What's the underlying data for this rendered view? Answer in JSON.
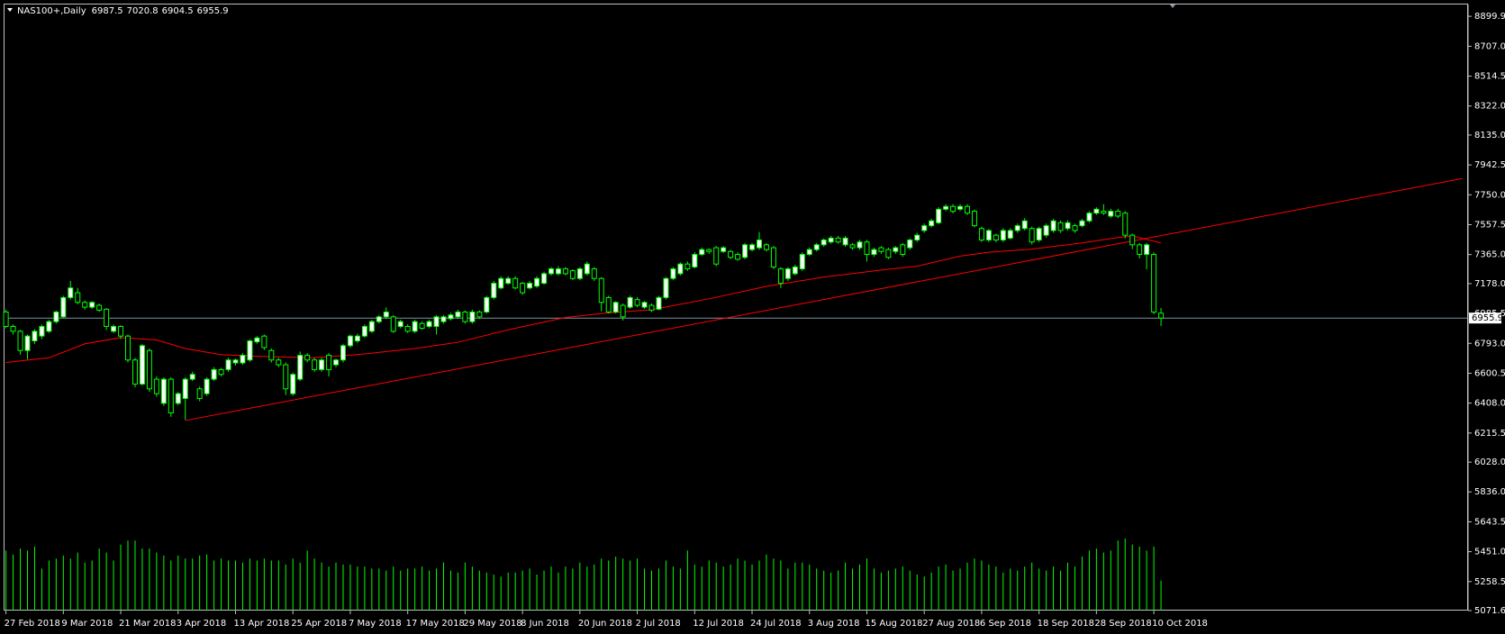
{
  "chart_data": {
    "type": "candlestick",
    "title": "NAS100+,Daily",
    "categories": [
      "27 Feb 2018",
      null,
      null,
      null,
      null,
      null,
      null,
      null,
      "9 Mar 2018",
      null,
      null,
      null,
      null,
      null,
      null,
      null,
      "21 Mar 2018",
      null,
      null,
      null,
      null,
      null,
      null,
      null,
      "3 Apr 2018",
      null,
      null,
      null,
      null,
      null,
      null,
      null,
      "13 Apr 2018",
      null,
      null,
      null,
      null,
      null,
      null,
      null,
      "25 Apr 2018",
      null,
      null,
      null,
      null,
      null,
      null,
      null,
      "7 May 2018",
      null,
      null,
      null,
      null,
      null,
      null,
      null,
      "17 May 2018",
      null,
      null,
      null,
      null,
      null,
      null,
      null,
      "29 May 2018",
      null,
      null,
      null,
      null,
      null,
      null,
      null,
      "8 Jun 2018",
      null,
      null,
      null,
      null,
      null,
      null,
      null,
      "20 Jun 2018",
      null,
      null,
      null,
      null,
      null,
      null,
      null,
      "2 Jul 2018",
      null,
      null,
      null,
      null,
      null,
      null,
      null,
      "12 Jul 2018",
      null,
      null,
      null,
      null,
      null,
      null,
      null,
      "24 Jul 2018",
      null,
      null,
      null,
      null,
      null,
      null,
      null,
      "3 Aug 2018",
      null,
      null,
      null,
      null,
      null,
      null,
      null,
      "15 Aug 2018",
      null,
      null,
      null,
      null,
      null,
      null,
      null,
      "27 Aug 2018",
      null,
      null,
      null,
      null,
      null,
      null,
      null,
      "6 Sep 2018",
      null,
      null,
      null,
      null,
      null,
      null,
      null,
      "18 Sep 2018",
      null,
      null,
      null,
      null,
      null,
      null,
      null,
      "28 Sep 2018",
      null,
      null,
      null,
      null,
      null,
      null,
      null,
      "10 Oct 2018",
      null
    ],
    "open": [
      6995,
      6902,
      6871,
      6747,
      6809,
      6840,
      6871,
      6933,
      6964,
      7088,
      7119,
      7057,
      7026,
      7038,
      7013,
      6871,
      6902,
      6840,
      6686,
      6531,
      6747,
      6562,
      6407,
      6562,
      6407,
      6438,
      6562,
      6500,
      6469,
      6562,
      6624,
      6624,
      6667,
      6667,
      6686,
      6803,
      6840,
      6747,
      6686,
      6655,
      6469,
      6562,
      6716,
      6686,
      6624,
      6716,
      6655,
      6686,
      6778,
      6809,
      6840,
      6871,
      6933,
      6964,
      6964,
      6902,
      6902,
      6871,
      6921,
      6902,
      6902,
      6933,
      6952,
      6964,
      6995,
      6933,
      6995,
      6995,
      7088,
      7150,
      7180,
      7211,
      7180,
      7150,
      7162,
      7180,
      7242,
      7242,
      7273,
      7261,
      7211,
      7242,
      7273,
      7211,
      7088,
      6995,
      7038,
      7026,
      7075,
      7026,
      7038,
      7013,
      7088,
      7211,
      7242,
      7304,
      7285,
      7366,
      7397,
      7409,
      7385,
      7385,
      7366,
      7347,
      7397,
      7409,
      7428,
      7409,
      7273,
      7211,
      7242,
      7273,
      7366,
      7397,
      7428,
      7446,
      7471,
      7428,
      7428,
      7409,
      7446,
      7366,
      7409,
      7397,
      7385,
      7428,
      7409,
      7459,
      7520,
      7551,
      7570,
      7657,
      7675,
      7657,
      7675,
      7644,
      7533,
      7459,
      7490,
      7459,
      7471,
      7520,
      7533,
      7533,
      7459,
      7490,
      7520,
      7570,
      7533,
      7551,
      7551,
      7582,
      7632,
      7644,
      7613,
      7644,
      7632,
      7490,
      7428,
      7366,
      7366,
      6987.5
    ],
    "high": [
      7010,
      6915,
      6880,
      6850,
      6885,
      6915,
      6945,
      7005,
      7100,
      7195,
      7150,
      7070,
      7065,
      7050,
      7020,
      6915,
      6910,
      6850,
      6700,
      6790,
      6760,
      6580,
      6575,
      6575,
      6480,
      6575,
      6610,
      6515,
      6575,
      6640,
      6635,
      6700,
      6695,
      6730,
      6820,
      6840,
      6850,
      6760,
      6700,
      6670,
      6605,
      6740,
      6730,
      6700,
      6700,
      6730,
      6695,
      6790,
      6850,
      6855,
      6915,
      6945,
      6975,
      7025,
      6975,
      6945,
      6915,
      6945,
      6935,
      6945,
      6975,
      6975,
      6990,
      7010,
      7005,
      7010,
      7005,
      7100,
      7195,
      7225,
      7225,
      7225,
      7190,
      7195,
      7225,
      7255,
      7285,
      7290,
      7285,
      7270,
      7285,
      7320,
      7285,
      7220,
      7100,
      7065,
      7050,
      7100,
      7090,
      7065,
      7050,
      7100,
      7220,
      7285,
      7315,
      7320,
      7380,
      7410,
      7405,
      7420,
      7420,
      7395,
      7380,
      7440,
      7440,
      7510,
      7440,
      7420,
      7285,
      7285,
      7300,
      7380,
      7410,
      7440,
      7470,
      7485,
      7485,
      7485,
      7440,
      7460,
      7460,
      7410,
      7420,
      7410,
      7420,
      7440,
      7470,
      7505,
      7565,
      7595,
      7670,
      7690,
      7690,
      7690,
      7690,
      7655,
      7545,
      7530,
      7500,
      7535,
      7535,
      7565,
      7600,
      7545,
      7545,
      7565,
      7595,
      7585,
      7585,
      7565,
      7595,
      7645,
      7670,
      7690,
      7660,
      7660,
      7645,
      7500,
      7440,
      7440,
      7380,
      7020.8
    ],
    "low": [
      6890,
      6850,
      6720,
      6690,
      6790,
      6820,
      6860,
      6920,
      6955,
      7075,
      7045,
      7010,
      7015,
      6995,
      6880,
      6860,
      6820,
      6670,
      6510,
      6520,
      6480,
      6450,
      6390,
      6320,
      6395,
      6300,
      6550,
      6420,
      6455,
      6550,
      6580,
      6610,
      6650,
      6655,
      6675,
      6790,
      6750,
      6670,
      6640,
      6460,
      6455,
      6550,
      6670,
      6610,
      6610,
      6580,
      6640,
      6670,
      6765,
      6795,
      6830,
      6860,
      6920,
      6950,
      6860,
      6890,
      6860,
      6860,
      6880,
      6890,
      6850,
      6920,
      6940,
      6950,
      6920,
      6920,
      6950,
      6985,
      7075,
      7140,
      7170,
      7140,
      7105,
      7140,
      7150,
      7170,
      7230,
      7230,
      7230,
      7200,
      7200,
      7230,
      7195,
      7000,
      6985,
      6985,
      6940,
      7015,
      7025,
      7015,
      6995,
      7005,
      7075,
      7200,
      7230,
      7260,
      7275,
      7355,
      7370,
      7290,
      7375,
      7335,
      7325,
      7335,
      7385,
      7395,
      7385,
      7270,
      7150,
      7195,
      7230,
      7260,
      7355,
      7385,
      7415,
      7435,
      7435,
      7415,
      7395,
      7395,
      7320,
      7350,
      7370,
      7335,
      7370,
      7350,
      7395,
      7445,
      7505,
      7540,
      7560,
      7645,
      7630,
      7645,
      7620,
      7540,
      7445,
      7445,
      7445,
      7445,
      7460,
      7505,
      7520,
      7430,
      7445,
      7475,
      7505,
      7505,
      7520,
      7505,
      7540,
      7570,
      7620,
      7620,
      7600,
      7600,
      7470,
      7400,
      7340,
      7270,
      6980,
      6904.5
    ],
    "close": [
      6902,
      6871,
      6747,
      6840,
      6871,
      6902,
      6933,
      6995,
      7088,
      7150,
      7057,
      7026,
      7057,
      7007,
      6902,
      6902,
      6840,
      6686,
      6531,
      6778,
      6500,
      6469,
      6562,
      6345,
      6469,
      6562,
      6593,
      6438,
      6562,
      6624,
      6593,
      6686,
      6686,
      6716,
      6809,
      6828,
      6766,
      6686,
      6655,
      6500,
      6593,
      6716,
      6686,
      6624,
      6686,
      6624,
      6686,
      6778,
      6840,
      6840,
      6902,
      6933,
      6964,
      6995,
      6871,
      6933,
      6871,
      6933,
      6890,
      6933,
      6964,
      6964,
      6976,
      6995,
      6933,
      6995,
      6964,
      7088,
      7180,
      7211,
      7211,
      7150,
      7119,
      7180,
      7211,
      7242,
      7273,
      7273,
      7242,
      7211,
      7273,
      7304,
      7211,
      7057,
      6995,
      7057,
      6964,
      7088,
      7038,
      7057,
      7007,
      7088,
      7211,
      7273,
      7304,
      7273,
      7366,
      7397,
      7385,
      7304,
      7409,
      7347,
      7335,
      7428,
      7428,
      7459,
      7397,
      7285,
      7180,
      7273,
      7285,
      7366,
      7397,
      7428,
      7459,
      7471,
      7446,
      7471,
      7409,
      7446,
      7366,
      7397,
      7385,
      7347,
      7409,
      7366,
      7459,
      7490,
      7551,
      7582,
      7657,
      7675,
      7644,
      7675,
      7632,
      7551,
      7459,
      7520,
      7459,
      7520,
      7520,
      7551,
      7582,
      7446,
      7533,
      7551,
      7582,
      7520,
      7570,
      7520,
      7582,
      7632,
      7657,
      7632,
      7644,
      7613,
      7490,
      7428,
      7366,
      7428,
      6995,
      6955.9
    ],
    "volume": [
      60,
      56,
      62,
      60,
      64,
      42,
      50,
      52,
      55,
      52,
      58,
      48,
      50,
      62,
      58,
      50,
      66,
      70,
      70,
      62,
      62,
      58,
      55,
      50,
      55,
      52,
      52,
      55,
      56,
      50,
      52,
      50,
      50,
      48,
      52,
      50,
      52,
      50,
      50,
      46,
      52,
      48,
      60,
      52,
      48,
      44,
      48,
      46,
      46,
      44,
      44,
      42,
      42,
      40,
      44,
      40,
      42,
      42,
      44,
      40,
      42,
      48,
      40,
      38,
      48,
      44,
      40,
      38,
      36,
      34,
      38,
      38,
      40,
      42,
      36,
      40,
      44,
      38,
      44,
      42,
      48,
      44,
      46,
      52,
      50,
      54,
      52,
      50,
      52,
      42,
      40,
      42,
      50,
      44,
      42,
      60,
      46,
      44,
      50,
      48,
      44,
      46,
      52,
      50,
      46,
      50,
      56,
      52,
      50,
      42,
      48,
      48,
      46,
      42,
      40,
      38,
      40,
      48,
      42,
      46,
      52,
      42,
      38,
      40,
      42,
      44,
      40,
      36,
      34,
      38,
      44,
      46,
      40,
      42,
      48,
      52,
      50,
      46,
      44,
      38,
      42,
      40,
      44,
      48,
      42,
      40,
      44,
      40,
      48,
      44,
      54,
      60,
      62,
      58,
      60,
      70,
      72,
      66,
      64,
      60,
      64,
      30
    ],
    "bull_color": "#ffffff",
    "bear_color": "#000000",
    "wick_color": "#00ff00",
    "volume_color": "#00ff00",
    "ylim": [
      5071.6,
      8975.9
    ],
    "yticks": [
      8899.9,
      {
        "value": 8707,
        "label": "8707.0"
      },
      8514.5,
      {
        "value": 8322,
        "label": "8322.0"
      },
      {
        "value": 8135,
        "label": "8135.0"
      },
      7942.5,
      {
        "value": 7750,
        "label": "7750.0"
      },
      7557.5,
      {
        "value": 7365,
        "label": "7365.0"
      },
      {
        "value": 7178,
        "label": "7178.0"
      },
      6985.5,
      {
        "value": 6793,
        "label": "6793.0"
      },
      6600.5,
      {
        "value": 6408,
        "label": "6408.0"
      },
      6215.5,
      {
        "value": 6028,
        "label": "6028.0"
      },
      {
        "value": 5836,
        "label": "5836.0"
      },
      5643.5,
      {
        "value": 5451,
        "label": "5451.0"
      },
      5258.5,
      5071.6
    ],
    "ma": {
      "color": "#ff0000",
      "x": [
        0,
        6,
        11,
        16,
        21,
        25,
        30,
        35,
        43,
        50,
        57,
        63,
        70,
        78,
        83,
        90,
        98,
        106,
        114,
        122,
        127,
        133,
        137,
        143,
        150,
        155,
        157,
        161
      ],
      "values": [
        6670,
        6700,
        6790,
        6830,
        6815,
        6760,
        6720,
        6710,
        6700,
        6725,
        6760,
        6800,
        6880,
        6960,
        6985,
        7010,
        7080,
        7160,
        7220,
        7265,
        7290,
        7355,
        7380,
        7400,
        7440,
        7475,
        7485,
        7440
      ]
    },
    "trendline": {
      "color": "#ff0000",
      "x": [
        25,
        203
      ],
      "values": [
        6296,
        7855
      ]
    },
    "price_line_color": "#7f8fa0"
  }
}
